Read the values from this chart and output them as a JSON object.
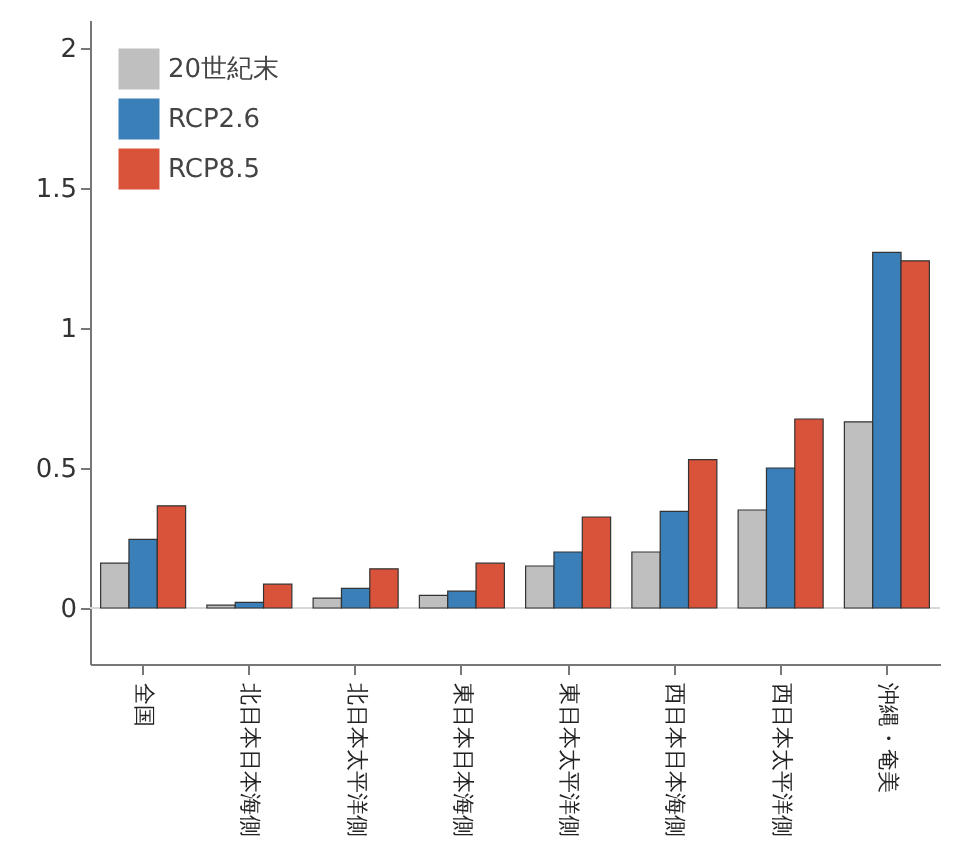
{
  "chart_data": {
    "type": "bar",
    "categories": [
      "全国",
      "北日本日本海側",
      "北日本太平洋側",
      "東日本日本海側",
      "東日本太平洋側",
      "西日本日本海側",
      "西日本太平洋側",
      "沖縄・奄美"
    ],
    "series": [
      {
        "name": "20世紀末",
        "color": "#bfbfbf",
        "values": [
          0.16,
          0.01,
          0.035,
          0.045,
          0.15,
          0.2,
          0.35,
          0.665
        ]
      },
      {
        "name": "RCP2.6",
        "color": "#3a7fb8",
        "values": [
          0.245,
          0.02,
          0.07,
          0.06,
          0.2,
          0.345,
          0.5,
          1.27
        ]
      },
      {
        "name": "RCP8.5",
        "color": "#d9533b",
        "values": [
          0.365,
          0.085,
          0.14,
          0.16,
          0.325,
          0.53,
          0.675,
          1.24
        ]
      }
    ],
    "ylim": [
      -0.2,
      2.1
    ],
    "yticks": [
      0,
      {
        "value": 0.5,
        "label": "0.5"
      },
      1,
      1.5,
      2
    ],
    "ref_lines": [
      {
        "axis": "y",
        "value": 0,
        "color": "#d8d8d8"
      }
    ],
    "legend": "top left",
    "grid": false
  }
}
